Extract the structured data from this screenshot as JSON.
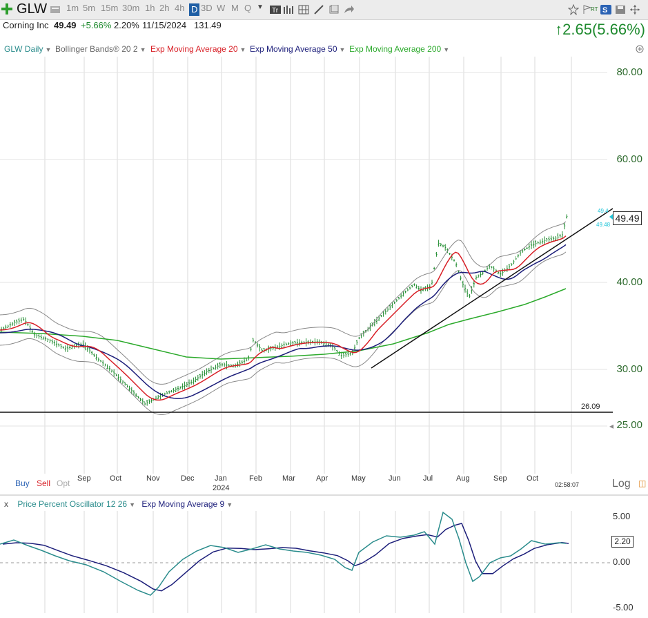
{
  "toolbar": {
    "symbol": "GLW",
    "timeframes": [
      "1m",
      "5m",
      "15m",
      "30m",
      "1h",
      "2h",
      "4h",
      "D",
      "3D",
      "W",
      "M",
      "Q"
    ],
    "active_timeframe": "D",
    "rt_label": "RT"
  },
  "quote": {
    "company": "Corning Inc",
    "price": "49.49",
    "change": "+5.66%",
    "pct": "2.20%",
    "date": "11/15/2024",
    "volume": "131.49",
    "big_change": "↑2.65(5.66%)"
  },
  "indicators": {
    "glw_daily": "GLW Daily",
    "bollinger": "Bollinger Bands® 20 2",
    "ema20": "Exp Moving Average 20",
    "ema50": "Exp Moving Average 50",
    "ema200": "Exp Moving Average 200"
  },
  "colors": {
    "ema20": "#d81f26",
    "ema50": "#1c1e7a",
    "ema200": "#2caa2c",
    "bollinger": "#888888",
    "price_axis": "#2d6a2d",
    "osc": "#2a8c8c",
    "osc_signal": "#1c1e7a"
  },
  "price_axis": {
    "labels": [
      "80.00",
      "60.00",
      "40.00",
      "30.00",
      "25.00"
    ],
    "last": "49.49",
    "mini_labels": [
      "49.4",
      "49.48"
    ],
    "support_label": "26.09"
  },
  "x_axis": {
    "months": [
      "Sep",
      "Oct",
      "Nov",
      "Dec",
      "Jan",
      "Feb",
      "Mar",
      "Apr",
      "May",
      "Jun",
      "Jul",
      "Aug",
      "Sep",
      "Oct"
    ],
    "year": "2024",
    "time": "02:58:07",
    "log_label": "Log"
  },
  "trade": {
    "buy": "Buy",
    "sell": "Sell",
    "opt": "Opt"
  },
  "oscillator": {
    "close": "x",
    "name": "Price Percent Oscillator 12 26",
    "signal": "Exp Moving Average 9",
    "axis": [
      "5.00",
      "0.00",
      "-5.00"
    ],
    "last": "2.20"
  }
}
